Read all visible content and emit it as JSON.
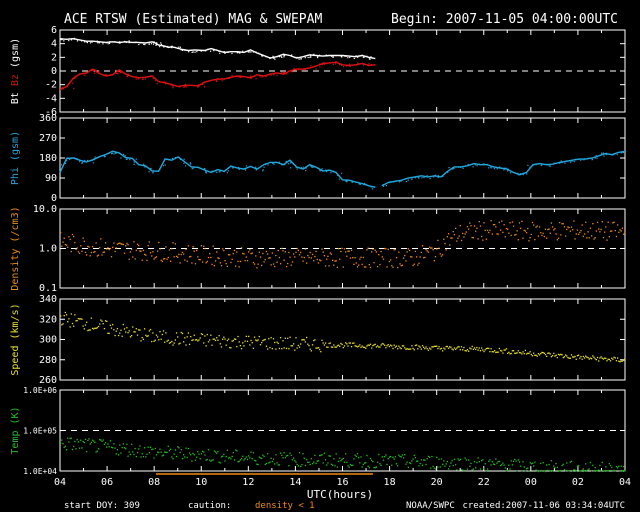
{
  "header": {
    "title": "ACE RTSW (Estimated) MAG & SWEPAM",
    "begin": "Begin: 2007-11-05 04:00:00UTC"
  },
  "footer": {
    "start_doy": "start DOY: 309",
    "caution": "caution:",
    "density_note": "density < 1",
    "source": "NOAA/SWPC",
    "created": "created:2007-11-06 03:34:04UTC"
  },
  "colors": {
    "bt": "#ffffff",
    "bz": "#e01010",
    "phi": "#20a8e0",
    "density": "#f08c10",
    "speed": "#e8e020",
    "temp": "#20c020",
    "axes": "#ffffff"
  },
  "chart_data": [
    {
      "type": "line",
      "panel": "mag",
      "ylabel_parts": [
        "Bt",
        "Bz",
        "(gsm)"
      ],
      "ylim": [
        -6.6,
        6.6
      ],
      "yticks": [
        "6",
        "4",
        "2",
        "0",
        "-2",
        "-4",
        "-6"
      ],
      "reference_line": 0,
      "series": [
        {
          "name": "Bt",
          "x": [
            0,
            1,
            2,
            3,
            4,
            5,
            6,
            7,
            8,
            9,
            10,
            11,
            12,
            13,
            14,
            14.5,
            15,
            16,
            16.5,
            17,
            17.8,
            18.5,
            19.5,
            20.5,
            22,
            23,
            24,
            25,
            26,
            27,
            28,
            29,
            30,
            31,
            32,
            33,
            34,
            35,
            36,
            37,
            38,
            39,
            40,
            41,
            42,
            43,
            44,
            45,
            46,
            47,
            48
          ],
          "y": [
            5.2,
            5.1,
            5.2,
            5.0,
            4.8,
            4.8,
            4.7,
            4.6,
            4.7,
            4.6,
            4.7,
            4.6,
            4.6,
            4.5,
            4.7,
            4.5,
            4.2,
            4.0,
            3.8,
            3.9,
            3.7,
            3.5,
            3.3,
            3.4,
            3.3,
            3.6,
            3.3,
            3.0,
            3.1,
            3.1,
            3.0,
            3.4,
            2.9,
            2.5,
            2.1,
            2.3,
            2.7,
            2.5,
            2.1,
            2.3,
            2.6,
            2.5,
            2.4,
            2.5,
            2.5,
            2.5,
            2.4,
            2.3,
            2.5,
            2.2,
            2.0
          ]
        },
        {
          "name": "Bz",
          "x": [
            0,
            1,
            2,
            3,
            4,
            5,
            6,
            7,
            8,
            9,
            10,
            11,
            12,
            13,
            14,
            15,
            16,
            17,
            18,
            19,
            20,
            21,
            22,
            23,
            24,
            25,
            26,
            27,
            28,
            29,
            30,
            31,
            32,
            33,
            34,
            35,
            36,
            37,
            38,
            39,
            40,
            41,
            42,
            43,
            44,
            45,
            46,
            47,
            48
          ],
          "y": [
            -3.0,
            -2.5,
            -1.2,
            -0.5,
            -0.3,
            0.3,
            -0.4,
            -0.8,
            -0.6,
            0.2,
            -0.5,
            -0.9,
            -1.1,
            -1.0,
            -0.8,
            -1.7,
            -1.9,
            -2.2,
            -2.5,
            -2.3,
            -2.3,
            -2.4,
            -1.8,
            -1.5,
            -1.3,
            -1.3,
            -1.0,
            -0.8,
            -0.9,
            -1.1,
            -0.6,
            -0.8,
            -0.5,
            -0.3,
            -0.5,
            0.0,
            0.3,
            0.3,
            0.5,
            0.8,
            1.2,
            1.3,
            1.4,
            1.0,
            0.9,
            1.0,
            1.2,
            0.9,
            1.0
          ]
        }
      ]
    },
    {
      "type": "line",
      "panel": "phi",
      "ylabel_parts": [
        "Phi",
        "(gsm)"
      ],
      "ylim": [
        0,
        360
      ],
      "yticks": [
        "360",
        "270",
        "180",
        "90",
        "0"
      ],
      "series": [
        {
          "name": "Phi",
          "x": [
            0,
            1,
            2,
            3,
            4,
            5,
            6,
            7,
            8,
            9,
            10,
            11,
            12,
            13,
            14,
            15,
            16,
            17,
            18,
            19,
            20,
            21,
            22,
            23,
            24,
            25,
            26,
            27,
            28,
            29,
            30,
            31,
            32,
            33,
            34,
            35,
            36,
            37,
            38,
            39,
            40,
            41,
            42,
            43,
            44,
            45,
            46,
            47,
            48
          ],
          "y": [
            115,
            178,
            180,
            170,
            162,
            172,
            186,
            196,
            210,
            203,
            182,
            178,
            150,
            145,
            122,
            120,
            176,
            170,
            185,
            162,
            140,
            138,
            126,
            115,
            128,
            120,
            143,
            135,
            130,
            142,
            130,
            150,
            160,
            160,
            150,
            170,
            140,
            130,
            150,
            138,
            122,
            125,
            115,
            82,
            80,
            72,
            65,
            55,
            48
          ]
        },
        {
          "name": "Phi-b",
          "x": [
            49,
            50,
            51,
            52,
            53,
            54,
            55,
            56,
            57,
            58,
            59,
            60,
            61,
            62,
            63,
            64,
            65,
            66,
            67,
            68,
            69,
            70,
            71,
            72,
            73,
            74,
            75,
            76,
            77,
            78,
            79,
            80,
            81,
            82,
            83,
            84,
            85,
            86
          ],
          "y": [
            55,
            70,
            75,
            80,
            90,
            95,
            100,
            95,
            100,
            95,
            120,
            140,
            140,
            145,
            155,
            150,
            150,
            140,
            135,
            130,
            115,
            105,
            115,
            150,
            155,
            150,
            152,
            160,
            165,
            170,
            175,
            175,
            180,
            190,
            200,
            195,
            205,
            210
          ]
        }
      ]
    },
    {
      "type": "scatter",
      "panel": "density",
      "ylabel_parts": [
        "Density",
        "(/cm3)"
      ],
      "ylim": [
        0.1,
        10
      ],
      "log_y": true,
      "yticks": [
        "10.0",
        "1.0",
        "0.1"
      ],
      "reference_line": 1,
      "x_range": [
        0,
        48
      ],
      "trend_x": [
        0,
        4,
        8,
        12,
        16,
        20,
        24,
        28,
        30,
        32,
        34,
        36,
        40,
        44,
        48
      ],
      "trend_y": [
        1.5,
        1.0,
        0.9,
        0.7,
        0.6,
        0.6,
        0.6,
        0.6,
        0.6,
        0.9,
        2.5,
        3.0,
        2.8,
        3.0,
        2.7
      ]
    },
    {
      "type": "scatter",
      "panel": "speed",
      "ylabel_parts": [
        "Speed",
        "(km/s)"
      ],
      "ylim": [
        260,
        340
      ],
      "yticks": [
        "340",
        "320",
        "300",
        "280",
        "260"
      ],
      "trend_x": [
        0,
        4,
        8,
        12,
        16,
        20,
        24,
        28,
        32,
        36,
        40,
        44,
        48
      ],
      "trend_y": [
        322,
        312,
        303,
        300,
        298,
        296,
        295,
        294,
        292,
        291,
        287,
        283,
        280
      ]
    },
    {
      "type": "scatter",
      "panel": "temp",
      "ylabel_parts": [
        "Temp",
        "(K)"
      ],
      "ylim": [
        10000,
        1000000
      ],
      "log_y": true,
      "yticks": [
        "1.0E+06",
        "1.0E+05",
        "1.0E+04"
      ],
      "reference_line": 100000,
      "trend_x": [
        0,
        4,
        8,
        12,
        16,
        20,
        24,
        28,
        32,
        36,
        40,
        44,
        48
      ],
      "trend_y": [
        50000,
        40000,
        30000,
        26000,
        22000,
        20000,
        19000,
        18000,
        17000,
        15000,
        13000,
        12000,
        11000
      ]
    }
  ],
  "x_axis": {
    "label": "UTC(hours)",
    "tick_labels": [
      "04",
      "06",
      "08",
      "10",
      "12",
      "14",
      "16",
      "18",
      "20",
      "22",
      "00",
      "02",
      "04"
    ]
  }
}
